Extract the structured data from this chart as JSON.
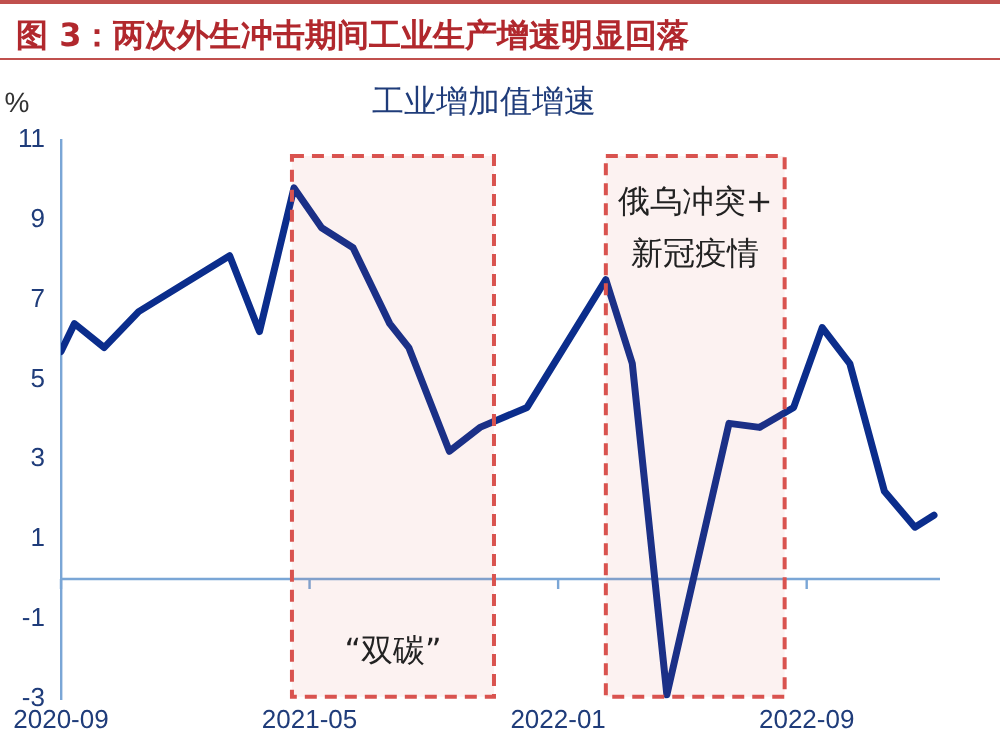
{
  "chart_data": {
    "type": "line",
    "title": "图 3：两次外生冲击期间工业生产增速明显回落",
    "ylabel": "%",
    "x": [
      "2020-09-01",
      "2020-09-14",
      "2020-10-13",
      "2020-11-16",
      "2021-02-13",
      "2021-03-13",
      "2021-04-16",
      "2021-05-13",
      "2021-06-13",
      "2021-07-19",
      "2021-08-07",
      "2021-09-16",
      "2021-10-16",
      "2021-12-01",
      "2022-02-16",
      "2022-03-13",
      "2022-04-16",
      "2022-06-16",
      "2022-07-16",
      "2022-08-19",
      "2022-09-16",
      "2022-10-13",
      "2022-11-16",
      "2022-12-16",
      "2023-01-04"
    ],
    "series": [
      {
        "name": "工业增加值增速",
        "color": "#0b2d8c",
        "values": [
          5.7,
          6.4,
          5.8,
          6.7,
          8.1,
          6.2,
          9.8,
          8.8,
          8.3,
          6.4,
          5.8,
          3.2,
          3.8,
          4.3,
          7.5,
          5.4,
          -2.9,
          3.9,
          3.8,
          4.3,
          6.3,
          5.4,
          2.2,
          1.3,
          1.6
        ]
      }
    ],
    "xlim": [
      "2020-09-01",
      "2023-01-10"
    ],
    "xticks": [
      "2020-09",
      "2021-05",
      "2022-01",
      "2022-09"
    ],
    "ylim": [
      -3,
      11
    ],
    "yticks": [
      -3,
      -1,
      1,
      3,
      5,
      7,
      9,
      11
    ],
    "ref_lines": [
      {
        "axis": "y",
        "value": 0,
        "color": "#7aa6d6"
      }
    ],
    "bands": [
      {
        "axis": "x",
        "from": "2021-04-14",
        "to": "2021-10-30",
        "label": "“双碳”",
        "color": "#d9534f"
      },
      {
        "axis": "x",
        "from": "2022-02-16",
        "to": "2022-08-10",
        "label": "俄乌冲突+\n新冠疫情",
        "color": "#d9534f"
      }
    ],
    "legend": "top",
    "marker": "none",
    "line_style": "solid"
  }
}
